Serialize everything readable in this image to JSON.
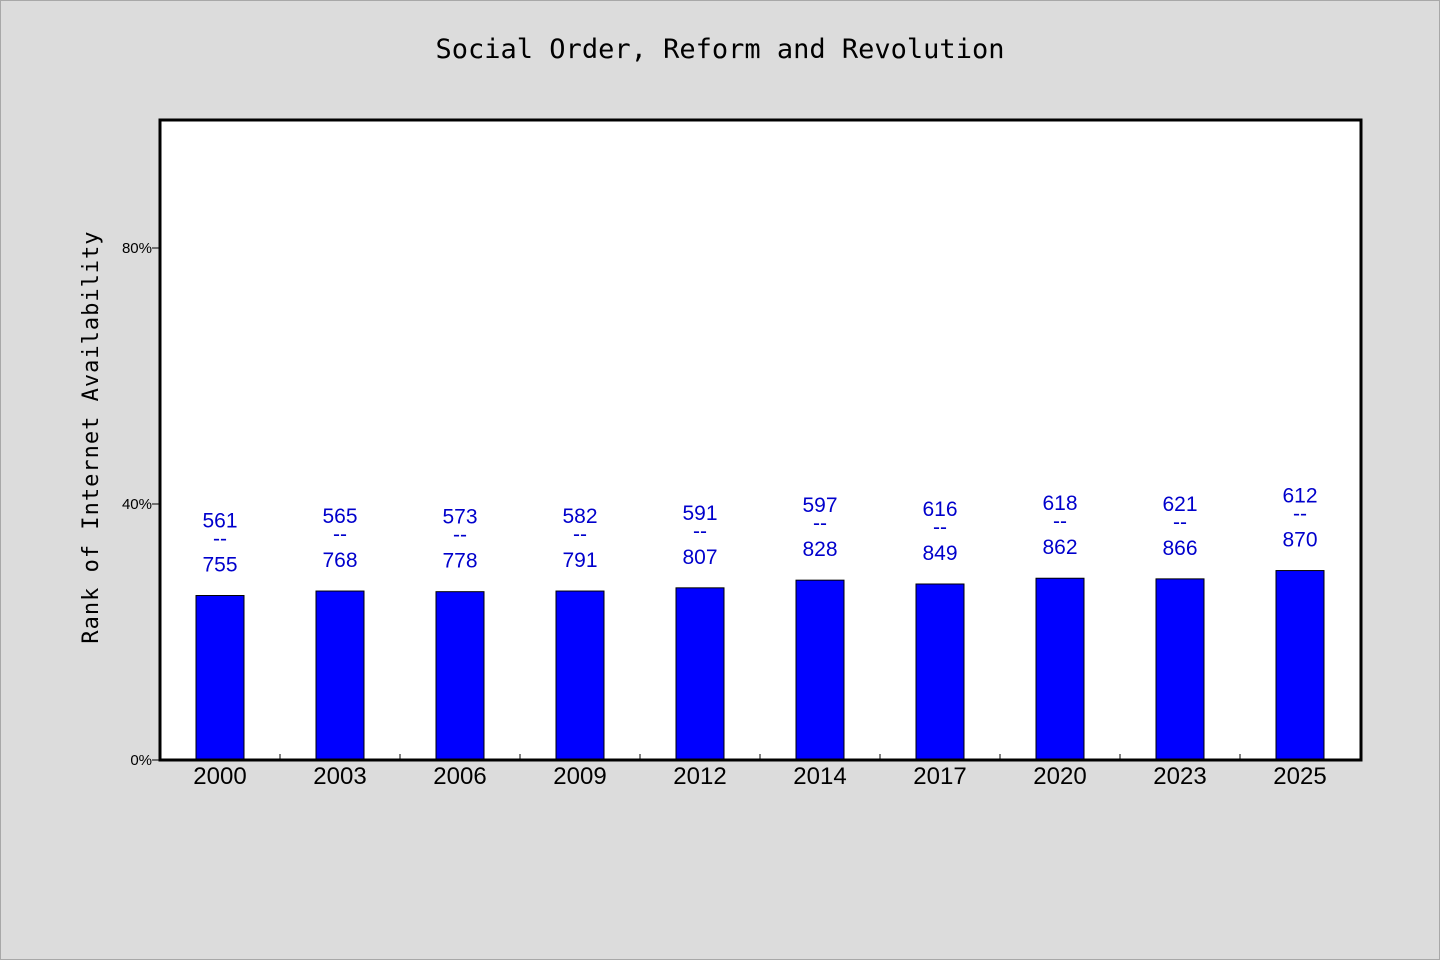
{
  "chart_data": {
    "type": "bar",
    "title": "Social Order, Reform and Revolution",
    "xlabel": "",
    "ylabel": "Rank of Internet Availability",
    "categories": [
      "2000",
      "2003",
      "2006",
      "2009",
      "2012",
      "2014",
      "2017",
      "2020",
      "2023",
      "2025"
    ],
    "values": [
      25.7,
      26.4,
      26.3,
      26.4,
      26.9,
      28.1,
      27.5,
      28.4,
      28.3,
      29.6
    ],
    "bar_labels": [
      [
        "561",
        "--",
        "755"
      ],
      [
        "565",
        "--",
        "768"
      ],
      [
        "573",
        "--",
        "778"
      ],
      [
        "582",
        "--",
        "791"
      ],
      [
        "591",
        "--",
        "807"
      ],
      [
        "597",
        "--",
        "828"
      ],
      [
        "616",
        "--",
        "849"
      ],
      [
        "618",
        "--",
        "862"
      ],
      [
        "621",
        "--",
        "866"
      ],
      [
        "612",
        "--",
        "870"
      ]
    ],
    "ylim": [
      0,
      100
    ],
    "yticks": [
      0,
      40,
      80
    ],
    "ytick_labels": [
      "0%",
      "40%",
      "80%"
    ],
    "grid": false,
    "colors": {
      "bar": "#0000ff",
      "bar_label": "#0000cc",
      "background": "#dcdcdc",
      "plot_background": "#ffffff"
    }
  }
}
